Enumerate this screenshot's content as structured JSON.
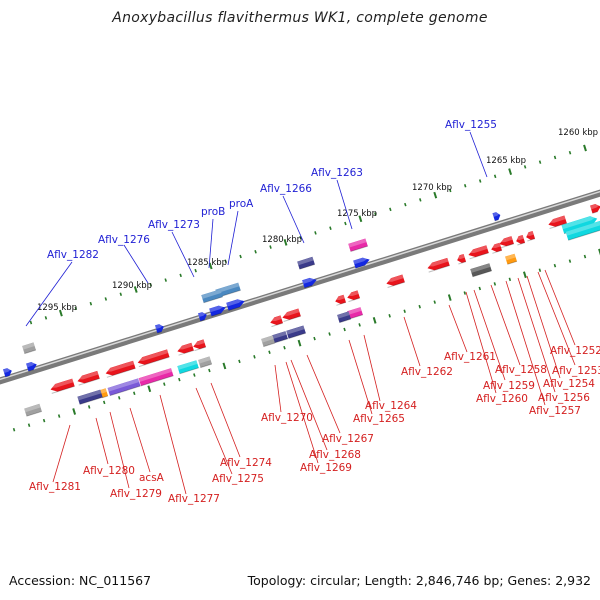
{
  "header": {
    "title": "Anoxybacillus flavithermus WK1, complete genome"
  },
  "footer": {
    "accession": "Accession: NC_011567",
    "topology": "Topology: circular; Length: 2,846,746 bp; Genes: 2,932"
  },
  "colors": {
    "backbone": "#777777",
    "forward_label": "#1f1fd4",
    "reverse_label": "#d41f1f",
    "tick": "#2a7a2a",
    "red": "#e8141c",
    "blue": "#1428e0",
    "navy": "#3a3a8a",
    "violet": "#7a5ad8",
    "magenta": "#e82aa8",
    "cyan": "#10d8e0",
    "steel": "#4a88c0",
    "orange": "#ff9a10",
    "gray": "#a0a0a0",
    "darkgray": "#585858"
  },
  "diagram": {
    "kbp_labels": [
      "1260 kbp",
      "1265 kbp",
      "1270 kbp",
      "1275 kbp",
      "1280 kbp",
      "1285 kbp",
      "1290 kbp",
      "1295 kbp"
    ],
    "forward_labels": [
      "Aflv_1255",
      "Aflv_1263",
      "Aflv_1266",
      "proA",
      "proB",
      "Aflv_1273",
      "Aflv_1276",
      "Aflv_1282"
    ],
    "reverse_labels": [
      "Aflv_1252",
      "Aflv_1253",
      "Aflv_1254",
      "Aflv_1256",
      "Aflv_1257",
      "Aflv_1258",
      "Aflv_1259",
      "Aflv_1260",
      "Aflv_1261",
      "Aflv_1262",
      "Aflv_1264",
      "Aflv_1265",
      "Aflv_1267",
      "Aflv_1268",
      "Aflv_1269",
      "Aflv_1270",
      "Aflv_1274",
      "Aflv_1275",
      "Aflv_1277",
      "acsA",
      "Aflv_1279",
      "Aflv_1280",
      "Aflv_1281"
    ]
  }
}
